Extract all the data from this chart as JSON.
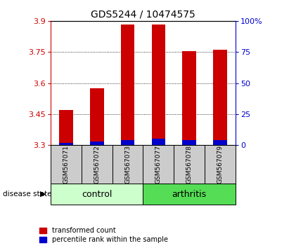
{
  "title": "GDS5244 / 10474575",
  "samples": [
    "GSM567071",
    "GSM567072",
    "GSM567073",
    "GSM567077",
    "GSM567078",
    "GSM567079"
  ],
  "transformed_count": [
    3.47,
    3.575,
    3.885,
    3.885,
    3.755,
    3.76
  ],
  "percentile_rank": [
    2.0,
    3.0,
    4.0,
    5.0,
    4.0,
    4.0
  ],
  "y_min": 3.3,
  "y_max": 3.9,
  "y_ticks": [
    3.3,
    3.45,
    3.6,
    3.75,
    3.9
  ],
  "y2_ticks": [
    0,
    25,
    50,
    75,
    100
  ],
  "bar_width": 0.45,
  "red_color": "#cc0000",
  "blue_color": "#0000cc",
  "control_color": "#ccffcc",
  "arthritis_color": "#55dd55",
  "label_bg_color": "#cccccc",
  "grid_ticks": [
    3.45,
    3.6,
    3.75
  ],
  "group_label_fontsize": 9,
  "tick_fontsize": 8,
  "title_fontsize": 10,
  "sample_fontsize": 6.5,
  "legend_fontsize": 7
}
